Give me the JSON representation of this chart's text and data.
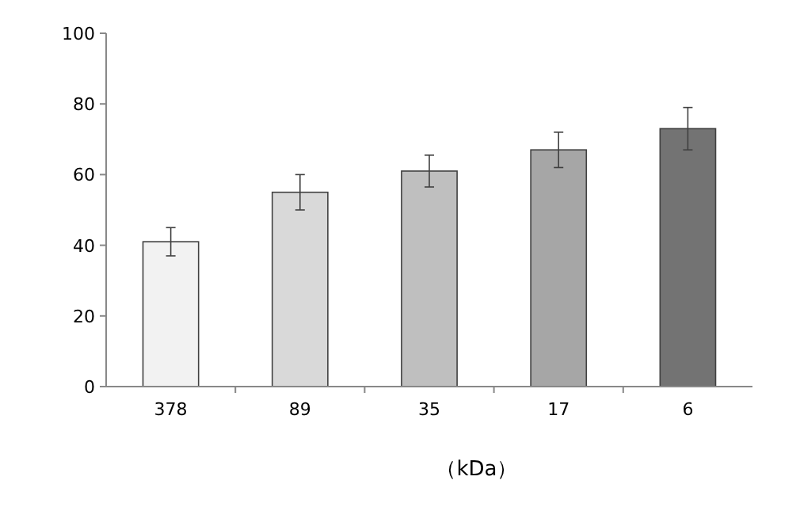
{
  "chart_data": {
    "type": "bar",
    "xlabel": "（kDa）",
    "categories": [
      "378",
      "89",
      "35",
      "17",
      "6"
    ],
    "values": [
      41,
      55,
      61,
      67,
      73
    ],
    "errors": [
      4,
      5,
      4.5,
      5,
      6
    ],
    "colors": [
      "#f2f2f2",
      "#d9d9d9",
      "#bfbfbf",
      "#a6a6a6",
      "#737373"
    ],
    "ylim": [
      0,
      100
    ],
    "yticks": [
      0,
      20,
      40,
      60,
      80,
      100
    ],
    "grid": false
  }
}
